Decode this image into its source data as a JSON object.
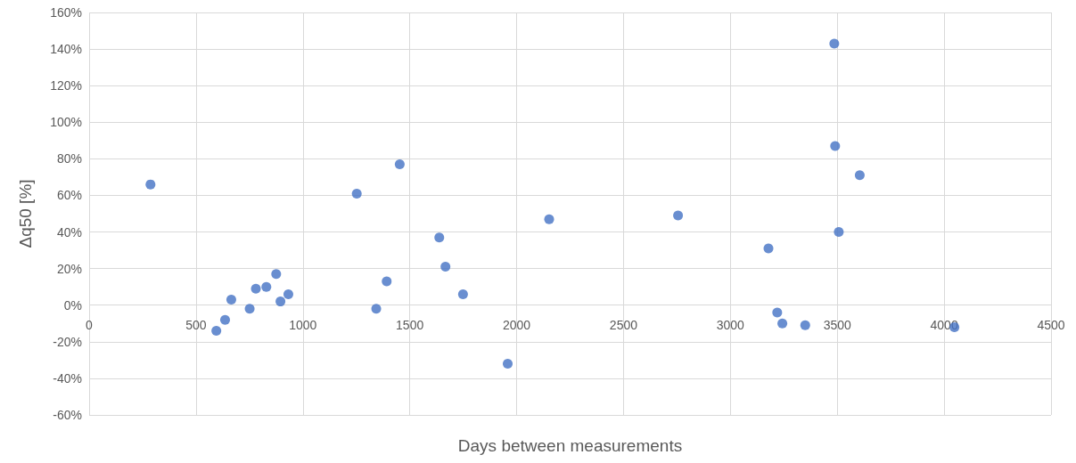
{
  "chart_data": {
    "type": "scatter",
    "xlabel": "Days between measurements",
    "ylabel": "Δq50 [%]",
    "x": [
      287,
      595,
      636,
      665,
      751,
      780,
      829,
      875,
      895,
      932,
      1252,
      1343,
      1392,
      1453,
      1638,
      1667,
      1749,
      1958,
      2152,
      2755,
      3178,
      3219,
      3243,
      3350,
      3486,
      3490,
      3605,
      3507,
      4048
    ],
    "series": [
      {
        "color": "#4472c4",
        "values": [
          66,
          -14,
          -8,
          3,
          -2,
          9,
          10,
          17,
          2,
          6,
          61,
          -2,
          13,
          77,
          37,
          21,
          6,
          -32,
          47,
          49,
          31,
          -4,
          -10,
          -11,
          143,
          87,
          71,
          40,
          -12
        ]
      }
    ],
    "xlim": [
      0,
      4500
    ],
    "xticks": [
      0,
      500,
      1000,
      1500,
      2000,
      2500,
      3000,
      3500,
      4000,
      4500
    ],
    "ylim": [
      -60,
      160
    ],
    "yticks": [
      {
        "value": -60,
        "label": "-60%"
      },
      {
        "value": -40,
        "label": "-40%"
      },
      {
        "value": -20,
        "label": "-20%"
      },
      {
        "value": 0,
        "label": "0%"
      },
      {
        "value": 20,
        "label": "20%"
      },
      {
        "value": 40,
        "label": "40%"
      },
      {
        "value": 60,
        "label": "60%"
      },
      {
        "value": 80,
        "label": "80%"
      },
      {
        "value": 100,
        "label": "100%"
      },
      {
        "value": 120,
        "label": "120%"
      },
      {
        "value": 140,
        "label": "140%"
      },
      {
        "value": 160,
        "label": "160%"
      }
    ],
    "grid": true,
    "marker": "circle"
  }
}
